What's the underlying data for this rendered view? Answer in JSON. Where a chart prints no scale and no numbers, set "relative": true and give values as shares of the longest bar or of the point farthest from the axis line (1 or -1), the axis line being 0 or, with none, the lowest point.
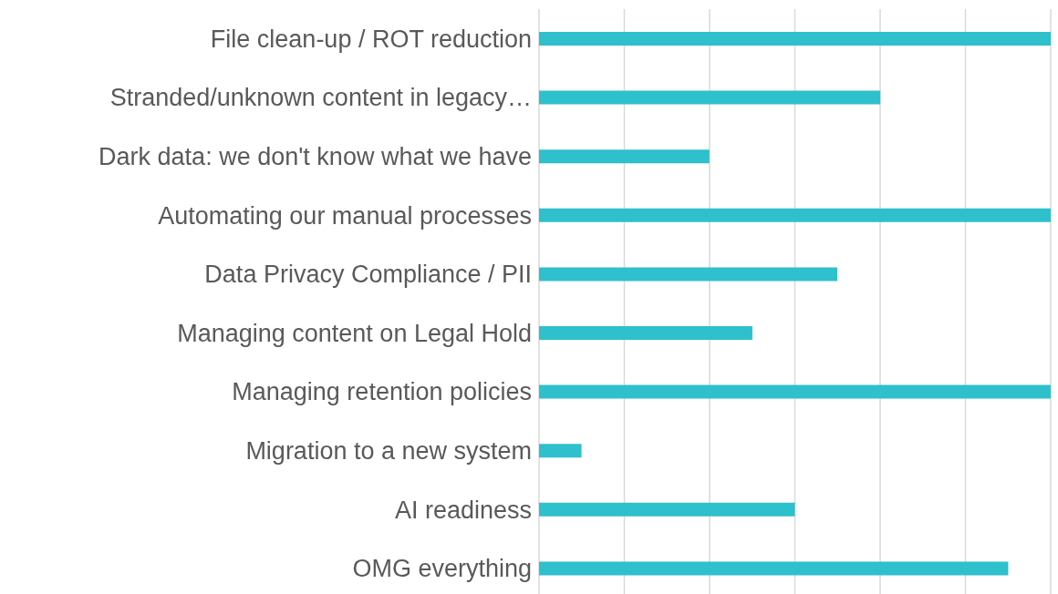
{
  "chart_data": {
    "type": "bar",
    "orientation": "horizontal",
    "relative": true,
    "grid": "x",
    "categories": [
      "File clean-up / ROT reduction",
      "Stranded/unknown content in legacy…",
      "Dark data: we don't know what we have",
      "Automating our manual processes",
      "Data Privacy Compliance / PII",
      "Managing content on Legal Hold",
      "Managing retention policies",
      "Migration to a new system",
      "AI readiness",
      "OMG everything"
    ],
    "values": [
      1,
      0.667,
      0.333,
      1,
      0.583,
      0.417,
      1,
      0.083,
      0.5,
      0.917
    ],
    "color": "#2ec0cc"
  }
}
